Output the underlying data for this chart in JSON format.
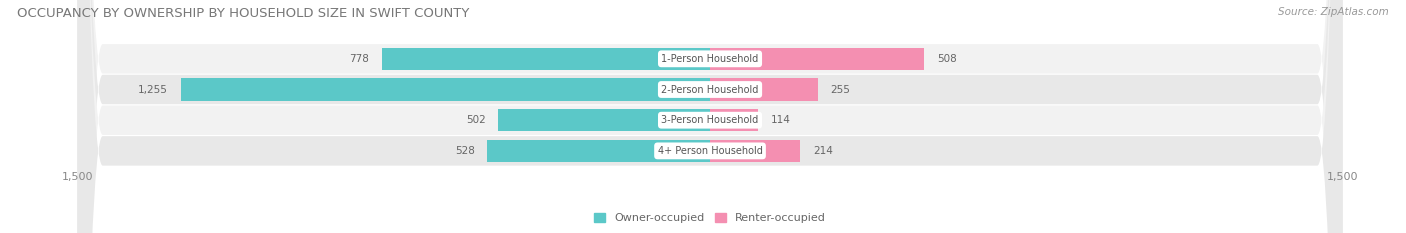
{
  "title": "OCCUPANCY BY OWNERSHIP BY HOUSEHOLD SIZE IN SWIFT COUNTY",
  "source": "Source: ZipAtlas.com",
  "categories": [
    "1-Person Household",
    "2-Person Household",
    "3-Person Household",
    "4+ Person Household"
  ],
  "owner_values": [
    778,
    1255,
    502,
    528
  ],
  "renter_values": [
    508,
    255,
    114,
    214
  ],
  "owner_color": "#5BC8C8",
  "renter_color": "#F48FB1",
  "row_bg_light": "#F2F2F2",
  "row_bg_dark": "#E8E8E8",
  "label_bg_color": "#FFFFFF",
  "axis_max": 1500,
  "title_fontsize": 9.5,
  "source_fontsize": 7.5,
  "tick_fontsize": 8,
  "label_fontsize": 7,
  "value_fontsize": 7.5,
  "legend_fontsize": 8,
  "bar_height": 0.72
}
